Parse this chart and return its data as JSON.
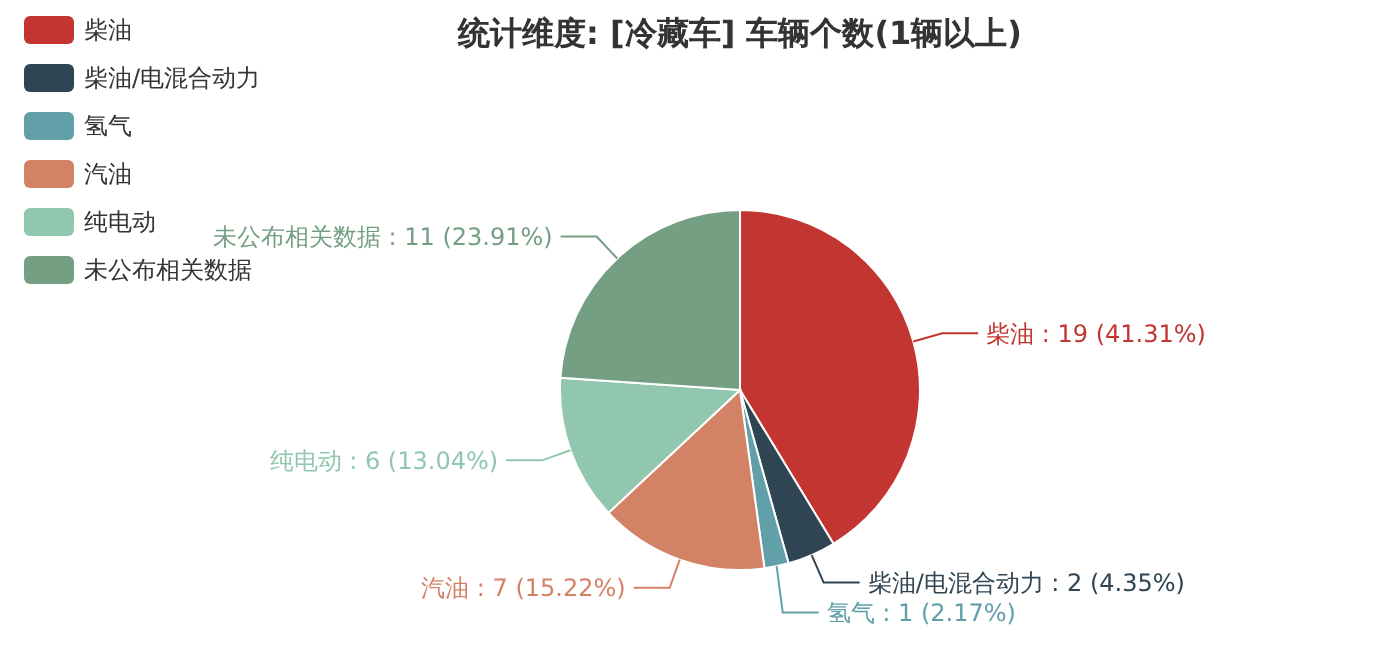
{
  "chart_data": {
    "type": "pie",
    "title": "统计维度: [冷藏车] 车辆个数(1辆以上)",
    "categories": [
      "柴油",
      "柴油/电混合动力",
      "氢气",
      "汽油",
      "纯电动",
      "未公布相关数据"
    ],
    "values": [
      19,
      2,
      1,
      7,
      6,
      11
    ],
    "colors": [
      "#c23531",
      "#2f4554",
      "#61a0a8",
      "#d48265",
      "#91c7ae",
      "#749f83"
    ],
    "value_labels": [
      ": 19 (41.31%)",
      ": 2 (4.35%)",
      ": 1 (2.17%)",
      ": 7 (15.22%)",
      ": 6 (13.04%)",
      ": 11 (23.91%)"
    ],
    "legend": "top left"
  }
}
